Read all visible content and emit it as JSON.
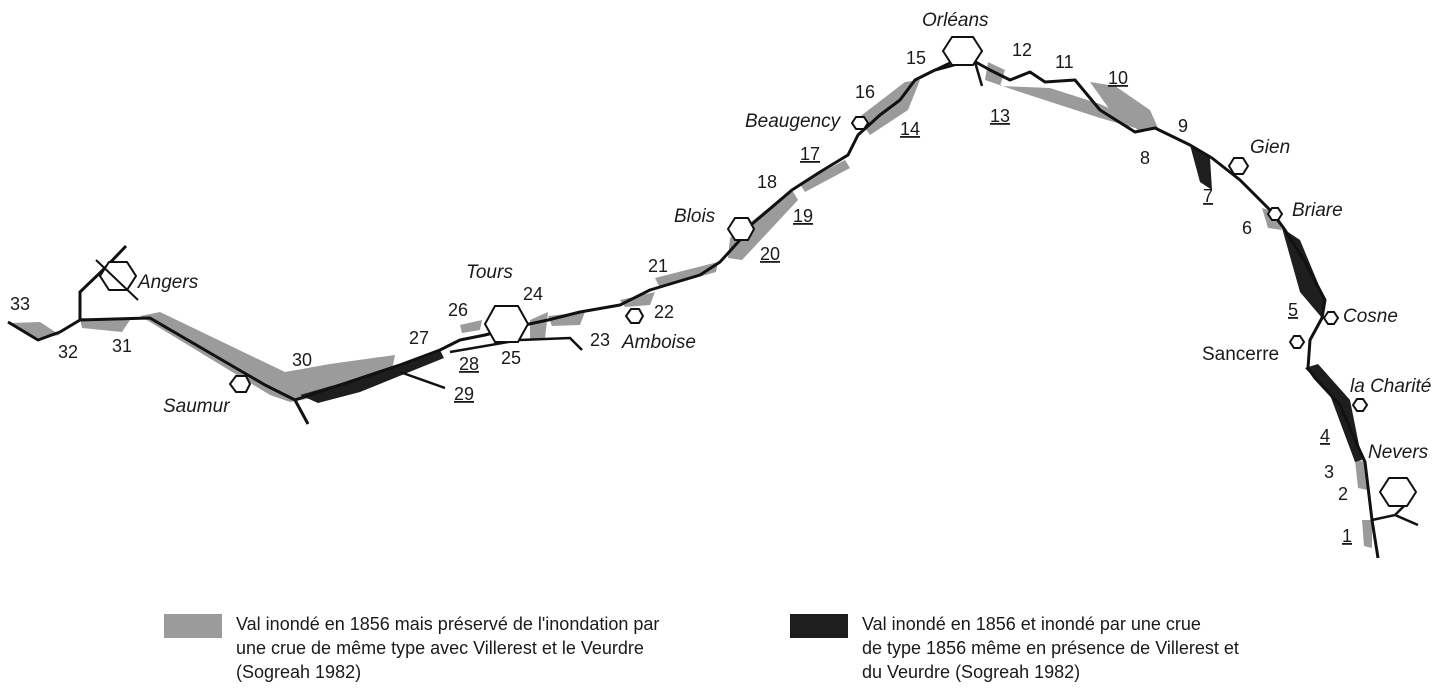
{
  "colors": {
    "grey_zone": "#9b9b9b",
    "black_zone": "#1e1e1e",
    "river": "#111111"
  },
  "cities": {
    "angers": "Angers",
    "saumur": "Saumur",
    "tours": "Tours",
    "amboise": "Amboise",
    "blois": "Blois",
    "beaugency": "Beaugency",
    "orleans": "Orléans",
    "gien": "Gien",
    "briare": "Briare",
    "cosne": "Cosne",
    "sancerre": "Sancerre",
    "la_charite": "la Charité",
    "nevers": "Nevers"
  },
  "sections": [
    "1",
    "2",
    "3",
    "4",
    "5",
    "6",
    "7",
    "8",
    "9",
    "10",
    "11",
    "12",
    "13",
    "14",
    "15",
    "16",
    "17",
    "18",
    "19",
    "20",
    "21",
    "22",
    "23",
    "24",
    "25",
    "26",
    "27",
    "28",
    "29",
    "30",
    "31",
    "32",
    "33"
  ],
  "underlined_sections": [
    "1",
    "4",
    "5",
    "7",
    "10",
    "13",
    "14",
    "17",
    "19",
    "20",
    "28",
    "29"
  ],
  "legend": {
    "grey": {
      "icon": "grey-zone-swatch",
      "lines": [
        "Val inondé en 1856 mais préservé de l'inondation par",
        "une crue de même type avec Villerest et le Veurdre",
        "(Sogreah 1982)"
      ]
    },
    "black": {
      "icon": "black-zone-swatch",
      "lines": [
        "Val inondé en 1856 et inondé par une crue",
        "de type 1856 même en présence de Villerest et",
        "du Veurdre (Sogreah 1982)"
      ]
    }
  }
}
